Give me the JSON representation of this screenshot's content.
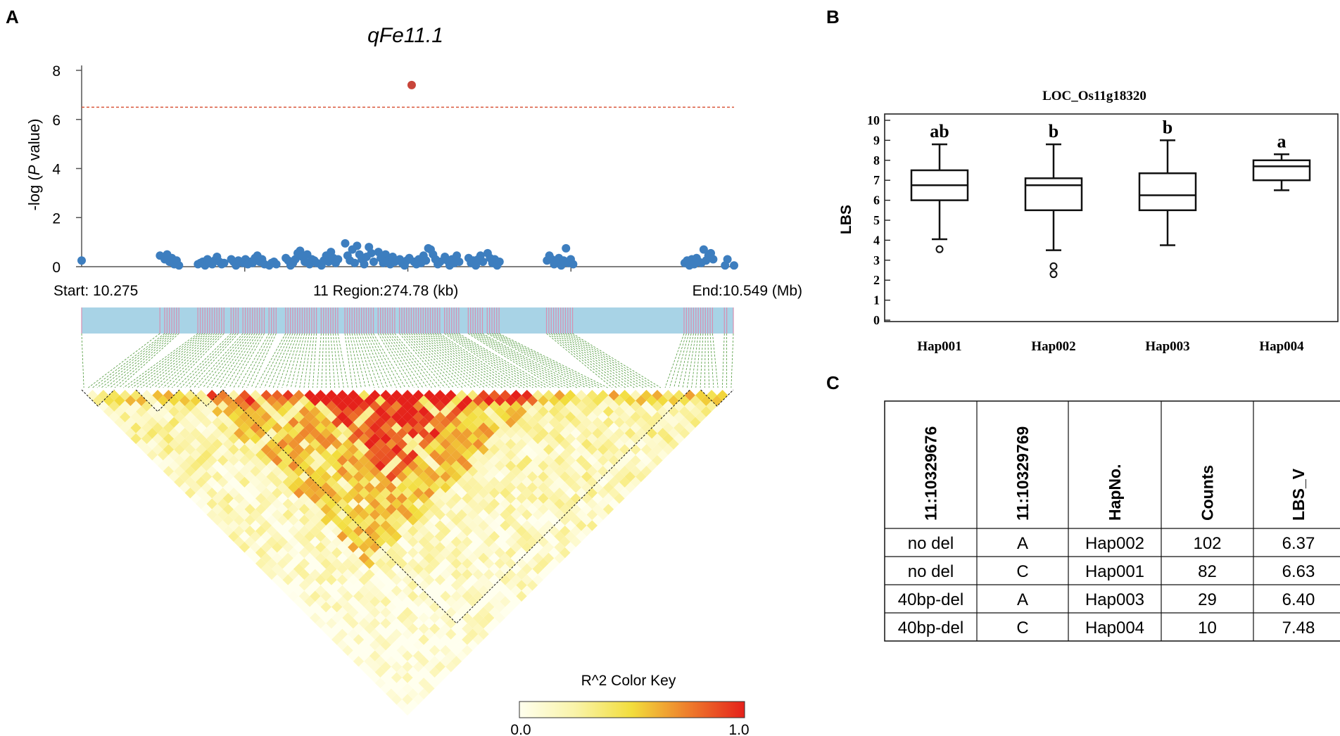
{
  "panels": {
    "a": "A",
    "b": "B",
    "c": "C"
  },
  "colors": {
    "point": "#3d7ebf",
    "sig_point": "#c8453a",
    "threshold": "#d9573b",
    "gene_band": "#a8d3e6",
    "snp_tick": "#d78fb0",
    "link": "#4f9a3b",
    "ld_low": "#ffffe6",
    "ld_mid": "#f4e84b",
    "ld_high": "#e8271c"
  },
  "chart_data": [
    {
      "type": "scatter",
      "title": "qFe11.1",
      "ylabel_prefix": "-log (",
      "ylabel_italic": "P",
      "ylabel_suffix": " value)",
      "ylim": [
        0,
        8
      ],
      "y_ticks": [
        "0",
        "2",
        "4",
        "6",
        "8"
      ],
      "xlim_kb": [
        0,
        274.78
      ],
      "threshold": 6.5,
      "x_start_label": "Start: 10.275",
      "x_mid_label": "11 Region:274.78 (kb)",
      "x_end_label": "End:10.549 (Mb)",
      "significant_points": [
        {
          "x": 139,
          "y": 7.4
        }
      ],
      "points": [
        {
          "x": 0,
          "y": 0.25
        },
        {
          "x": 33,
          "y": 0.45
        },
        {
          "x": 35,
          "y": 0.3
        },
        {
          "x": 36,
          "y": 0.5
        },
        {
          "x": 37,
          "y": 0.2
        },
        {
          "x": 38,
          "y": 0.35
        },
        {
          "x": 39,
          "y": 0.1
        },
        {
          "x": 40,
          "y": 0.25
        },
        {
          "x": 41,
          "y": 0.05
        },
        {
          "x": 49,
          "y": 0.1
        },
        {
          "x": 50,
          "y": 0.15
        },
        {
          "x": 51,
          "y": 0.2
        },
        {
          "x": 52,
          "y": 0.05
        },
        {
          "x": 53,
          "y": 0.3
        },
        {
          "x": 54,
          "y": 0.15
        },
        {
          "x": 55,
          "y": 0.1
        },
        {
          "x": 56,
          "y": 0.25
        },
        {
          "x": 57,
          "y": 0.4
        },
        {
          "x": 58,
          "y": 0.2
        },
        {
          "x": 59,
          "y": 0.1
        },
        {
          "x": 60,
          "y": 0.15
        },
        {
          "x": 63,
          "y": 0.3
        },
        {
          "x": 64,
          "y": 0.2
        },
        {
          "x": 65,
          "y": 0.05
        },
        {
          "x": 66,
          "y": 0.25
        },
        {
          "x": 68,
          "y": 0.15
        },
        {
          "x": 69,
          "y": 0.3
        },
        {
          "x": 70,
          "y": 0.1
        },
        {
          "x": 71,
          "y": 0.2
        },
        {
          "x": 72,
          "y": 0.15
        },
        {
          "x": 73,
          "y": 0.35
        },
        {
          "x": 74,
          "y": 0.45
        },
        {
          "x": 75,
          "y": 0.2
        },
        {
          "x": 76,
          "y": 0.3
        },
        {
          "x": 77,
          "y": 0.1
        },
        {
          "x": 79,
          "y": 0.05
        },
        {
          "x": 80,
          "y": 0.15
        },
        {
          "x": 81,
          "y": 0.2
        },
        {
          "x": 82,
          "y": 0.1
        },
        {
          "x": 86,
          "y": 0.35
        },
        {
          "x": 87,
          "y": 0.25
        },
        {
          "x": 88,
          "y": 0.05
        },
        {
          "x": 89,
          "y": 0.15
        },
        {
          "x": 90,
          "y": 0.3
        },
        {
          "x": 91,
          "y": 0.55
        },
        {
          "x": 92,
          "y": 0.65
        },
        {
          "x": 93,
          "y": 0.4
        },
        {
          "x": 94,
          "y": 0.2
        },
        {
          "x": 95,
          "y": 0.5
        },
        {
          "x": 96,
          "y": 0.1
        },
        {
          "x": 97,
          "y": 0.3
        },
        {
          "x": 98,
          "y": 0.25
        },
        {
          "x": 99,
          "y": 0.15
        },
        {
          "x": 101,
          "y": 0.05
        },
        {
          "x": 102,
          "y": 0.25
        },
        {
          "x": 103,
          "y": 0.45
        },
        {
          "x": 104,
          "y": 0.2
        },
        {
          "x": 105,
          "y": 0.6
        },
        {
          "x": 106,
          "y": 0.35
        },
        {
          "x": 107,
          "y": 0.15
        },
        {
          "x": 108,
          "y": 0.3
        },
        {
          "x": 111,
          "y": 0.95
        },
        {
          "x": 112,
          "y": 0.45
        },
        {
          "x": 113,
          "y": 0.25
        },
        {
          "x": 114,
          "y": 0.7
        },
        {
          "x": 115,
          "y": 0.15
        },
        {
          "x": 116,
          "y": 0.85
        },
        {
          "x": 117,
          "y": 0.5
        },
        {
          "x": 118,
          "y": 0.3
        },
        {
          "x": 119,
          "y": 0.1
        },
        {
          "x": 120,
          "y": 0.4
        },
        {
          "x": 121,
          "y": 0.8
        },
        {
          "x": 122,
          "y": 0.55
        },
        {
          "x": 123,
          "y": 0.2
        },
        {
          "x": 125,
          "y": 0.6
        },
        {
          "x": 126,
          "y": 0.35
        },
        {
          "x": 127,
          "y": 0.15
        },
        {
          "x": 128,
          "y": 0.5
        },
        {
          "x": 129,
          "y": 0.25
        },
        {
          "x": 130,
          "y": 0.1
        },
        {
          "x": 131,
          "y": 0.4
        },
        {
          "x": 132,
          "y": 0.2
        },
        {
          "x": 134,
          "y": 0.3
        },
        {
          "x": 135,
          "y": 0.15
        },
        {
          "x": 136,
          "y": 0.05
        },
        {
          "x": 137,
          "y": 0.25
        },
        {
          "x": 138,
          "y": 0.35
        },
        {
          "x": 140,
          "y": 0.2
        },
        {
          "x": 141,
          "y": 0.1
        },
        {
          "x": 142,
          "y": 0.3
        },
        {
          "x": 143,
          "y": 0.15
        },
        {
          "x": 144,
          "y": 0.45
        },
        {
          "x": 145,
          "y": 0.25
        },
        {
          "x": 146,
          "y": 0.75
        },
        {
          "x": 147,
          "y": 0.7
        },
        {
          "x": 148,
          "y": 0.5
        },
        {
          "x": 149,
          "y": 0.3
        },
        {
          "x": 150,
          "y": 0.1
        },
        {
          "x": 151,
          "y": 0.2
        },
        {
          "x": 153,
          "y": 0.4
        },
        {
          "x": 154,
          "y": 0.25
        },
        {
          "x": 155,
          "y": 0.05
        },
        {
          "x": 156,
          "y": 0.3
        },
        {
          "x": 157,
          "y": 0.15
        },
        {
          "x": 158,
          "y": 0.45
        },
        {
          "x": 159,
          "y": 0.2
        },
        {
          "x": 163,
          "y": 0.35
        },
        {
          "x": 164,
          "y": 0.15
        },
        {
          "x": 165,
          "y": 0.25
        },
        {
          "x": 166,
          "y": 0.05
        },
        {
          "x": 167,
          "y": 0.3
        },
        {
          "x": 168,
          "y": 0.45
        },
        {
          "x": 169,
          "y": 0.2
        },
        {
          "x": 171,
          "y": 0.55
        },
        {
          "x": 172,
          "y": 0.35
        },
        {
          "x": 173,
          "y": 0.15
        },
        {
          "x": 174,
          "y": 0.3
        },
        {
          "x": 175,
          "y": 0.05
        },
        {
          "x": 176,
          "y": 0.2
        },
        {
          "x": 196,
          "y": 0.25
        },
        {
          "x": 197,
          "y": 0.45
        },
        {
          "x": 198,
          "y": 0.3
        },
        {
          "x": 199,
          "y": 0.1
        },
        {
          "x": 200,
          "y": 0.2
        },
        {
          "x": 201,
          "y": 0.35
        },
        {
          "x": 202,
          "y": 0.05
        },
        {
          "x": 203,
          "y": 0.25
        },
        {
          "x": 204,
          "y": 0.75
        },
        {
          "x": 205,
          "y": 0.15
        },
        {
          "x": 206,
          "y": 0.3
        },
        {
          "x": 207,
          "y": 0.1
        },
        {
          "x": 254,
          "y": 0.15
        },
        {
          "x": 255,
          "y": 0.25
        },
        {
          "x": 256,
          "y": 0.05
        },
        {
          "x": 257,
          "y": 0.3
        },
        {
          "x": 258,
          "y": 0.1
        },
        {
          "x": 259,
          "y": 0.35
        },
        {
          "x": 260,
          "y": 0.2
        },
        {
          "x": 261,
          "y": 0.15
        },
        {
          "x": 262,
          "y": 0.7
        },
        {
          "x": 263,
          "y": 0.25
        },
        {
          "x": 264,
          "y": 0.45
        },
        {
          "x": 265,
          "y": 0.55
        },
        {
          "x": 266,
          "y": 0.3
        },
        {
          "x": 271,
          "y": 0.05
        },
        {
          "x": 272,
          "y": 0.3
        },
        {
          "x": 274.78,
          "y": 0.05
        }
      ]
    },
    {
      "type": "heatmap",
      "subtype": "ld_triangle",
      "color_key_title": "R^2 Color Key",
      "color_key_min": "0.0",
      "color_key_max": "1.0",
      "value_range": [
        0,
        1
      ]
    },
    {
      "type": "box",
      "title": "LOC_Os11g18320",
      "ylabel": "LBS",
      "ylim": [
        0,
        10
      ],
      "y_ticks": [
        "0",
        "1",
        "2",
        "3",
        "4",
        "5",
        "6",
        "7",
        "8",
        "9",
        "10"
      ],
      "categories": [
        "Hap001",
        "Hap002",
        "Hap003",
        "Hap004"
      ],
      "boxes": [
        {
          "name": "Hap001",
          "whisker_low": 4.05,
          "q1": 6.0,
          "median": 6.75,
          "q3": 7.5,
          "whisker_high": 8.8,
          "outliers": [
            3.55
          ],
          "letter": "ab"
        },
        {
          "name": "Hap002",
          "whisker_low": 3.5,
          "q1": 5.5,
          "median": 6.75,
          "q3": 7.1,
          "whisker_high": 8.8,
          "outliers": [
            2.7,
            2.3
          ],
          "letter": "b"
        },
        {
          "name": "Hap003",
          "whisker_low": 3.75,
          "q1": 5.5,
          "median": 6.25,
          "q3": 7.35,
          "whisker_high": 9.0,
          "outliers": [],
          "letter": "b"
        },
        {
          "name": "Hap004",
          "whisker_low": 6.5,
          "q1": 7.0,
          "median": 7.7,
          "q3": 8.0,
          "whisker_high": 8.3,
          "outliers": [],
          "letter": "a"
        }
      ]
    },
    {
      "type": "table",
      "headers": [
        "11:10329676",
        "11:10329769",
        "HapNo.",
        "Counts",
        "LBS_V"
      ],
      "rows": [
        [
          "no del",
          "A",
          "Hap002",
          "102",
          "6.37"
        ],
        [
          "no del",
          "C",
          "Hap001",
          "82",
          "6.63"
        ],
        [
          "40bp-del",
          "A",
          "Hap003",
          "29",
          "6.40"
        ],
        [
          "40bp-del",
          "C",
          "Hap004",
          "10",
          "7.48"
        ]
      ]
    }
  ]
}
